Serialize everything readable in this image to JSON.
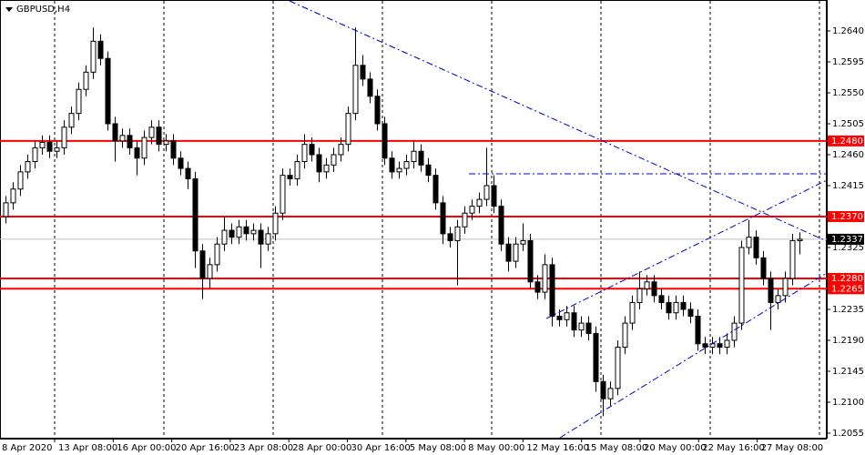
{
  "chart_data": {
    "type": "candlestick",
    "title": "GBPUSD,H4",
    "open": [
      1.237,
      1.239,
      1.241,
      1.2435,
      1.245,
      1.247,
      1.2478,
      1.2465,
      1.247,
      1.25,
      1.252,
      1.2555,
      1.258,
      1.2625,
      1.26,
      1.2505,
      1.248,
      1.2488,
      1.247,
      1.2455,
      1.2485,
      1.25,
      1.2475,
      1.248,
      1.2455,
      1.244,
      1.2425,
      1.232,
      1.228,
      1.23,
      1.233,
      1.235,
      1.234,
      1.2355,
      1.2345,
      1.235,
      1.233,
      1.2345,
      1.2375,
      1.243,
      1.2425,
      1.245,
      1.2475,
      1.246,
      1.2435,
      1.2445,
      1.246,
      1.2475,
      1.252,
      1.259,
      1.257,
      1.2545,
      1.2505,
      1.2455,
      1.2435,
      1.244,
      1.245,
      1.2465,
      1.2445,
      1.243,
      1.239,
      1.2345,
      1.2335,
      1.2355,
      1.2375,
      1.2385,
      1.2395,
      1.2415,
      1.2385,
      1.233,
      1.2305,
      1.233,
      1.2335,
      1.2275,
      1.226,
      1.23,
      1.2225,
      1.222,
      1.223,
      1.2205,
      1.2215,
      1.22,
      1.213,
      1.2105,
      1.212,
      1.218,
      1.2215,
      1.2245,
      1.2265,
      1.2275,
      1.2255,
      1.2245,
      1.223,
      1.2245,
      1.2235,
      1.2225,
      1.2185,
      1.218,
      1.2185,
      1.218,
      1.219,
      1.2215,
      1.2325,
      1.234,
      1.231,
      1.228,
      1.2245,
      1.2255,
      1.228,
      1.2335
    ],
    "high": [
      1.24,
      1.242,
      1.2445,
      1.246,
      1.248,
      1.2488,
      1.2488,
      1.248,
      1.251,
      1.253,
      1.2565,
      1.259,
      1.2645,
      1.2635,
      1.261,
      1.2515,
      1.2498,
      1.2498,
      1.248,
      1.2495,
      1.251,
      1.251,
      1.249,
      1.249,
      1.2465,
      1.245,
      1.2435,
      1.233,
      1.231,
      1.234,
      1.237,
      1.236,
      1.2365,
      1.2365,
      1.236,
      1.236,
      1.2355,
      1.2385,
      1.244,
      1.244,
      1.246,
      1.249,
      1.2485,
      1.247,
      1.2455,
      1.247,
      1.2485,
      1.253,
      1.2645,
      1.2605,
      1.258,
      1.2555,
      1.2515,
      1.2465,
      1.245,
      1.246,
      1.248,
      1.2475,
      1.2455,
      1.244,
      1.24,
      1.2355,
      1.2365,
      1.2385,
      1.2395,
      1.2405,
      1.247,
      1.243,
      1.2395,
      1.234,
      1.234,
      1.236,
      1.2345,
      1.2285,
      1.2315,
      1.231,
      1.2235,
      1.224,
      1.224,
      1.2225,
      1.2225,
      1.221,
      1.214,
      1.213,
      1.219,
      1.2225,
      1.2255,
      1.229,
      1.2285,
      1.2285,
      1.2265,
      1.2255,
      1.2255,
      1.2255,
      1.2245,
      1.2235,
      1.2195,
      1.2195,
      1.2195,
      1.22,
      1.2225,
      1.2335,
      1.2365,
      1.235,
      1.232,
      1.229,
      1.2265,
      1.229,
      1.2345,
      1.2347
    ],
    "low": [
      1.236,
      1.238,
      1.24,
      1.2425,
      1.244,
      1.246,
      1.2455,
      1.2455,
      1.246,
      1.249,
      1.251,
      1.2545,
      1.257,
      1.259,
      1.2495,
      1.245,
      1.247,
      1.246,
      1.243,
      1.2445,
      1.2475,
      1.2465,
      1.2465,
      1.2445,
      1.243,
      1.241,
      1.2295,
      1.225,
      1.2265,
      1.229,
      1.232,
      1.233,
      1.233,
      1.2335,
      1.2335,
      1.2295,
      1.232,
      1.2335,
      1.2365,
      1.2415,
      1.2415,
      1.244,
      1.245,
      1.242,
      1.2425,
      1.2435,
      1.245,
      1.2465,
      1.251,
      1.256,
      1.2535,
      1.2495,
      1.2445,
      1.2425,
      1.2425,
      1.243,
      1.244,
      1.2435,
      1.242,
      1.238,
      1.233,
      1.2325,
      1.227,
      1.2345,
      1.2365,
      1.2375,
      1.2385,
      1.2375,
      1.232,
      1.229,
      1.2295,
      1.232,
      1.2265,
      1.225,
      1.225,
      1.221,
      1.221,
      1.221,
      1.2195,
      1.2195,
      1.219,
      1.2115,
      1.208,
      1.2095,
      1.211,
      1.217,
      1.2205,
      1.2235,
      1.2255,
      1.2245,
      1.2235,
      1.222,
      1.222,
      1.2225,
      1.2215,
      1.2175,
      1.217,
      1.217,
      1.217,
      1.217,
      1.218,
      1.2205,
      1.2315,
      1.23,
      1.227,
      1.2205,
      1.2235,
      1.2245,
      1.227,
      1.2315
    ],
    "close": [
      1.239,
      1.241,
      1.2435,
      1.245,
      1.247,
      1.2478,
      1.2465,
      1.247,
      1.25,
      1.252,
      1.2555,
      1.258,
      1.2625,
      1.26,
      1.2505,
      1.248,
      1.2488,
      1.247,
      1.2455,
      1.2485,
      1.25,
      1.2475,
      1.248,
      1.2455,
      1.244,
      1.2425,
      1.232,
      1.228,
      1.23,
      1.233,
      1.235,
      1.234,
      1.2355,
      1.2345,
      1.235,
      1.233,
      1.2345,
      1.2375,
      1.243,
      1.2425,
      1.245,
      1.2475,
      1.246,
      1.2435,
      1.2445,
      1.246,
      1.2475,
      1.252,
      1.259,
      1.257,
      1.2545,
      1.2505,
      1.2455,
      1.2435,
      1.244,
      1.245,
      1.2465,
      1.2445,
      1.243,
      1.239,
      1.2345,
      1.2335,
      1.2355,
      1.2375,
      1.2385,
      1.2395,
      1.2415,
      1.2385,
      1.233,
      1.2305,
      1.233,
      1.2335,
      1.2275,
      1.226,
      1.23,
      1.2225,
      1.222,
      1.223,
      1.2205,
      1.2215,
      1.22,
      1.213,
      1.2105,
      1.212,
      1.218,
      1.2215,
      1.2245,
      1.2265,
      1.2275,
      1.2255,
      1.2245,
      1.223,
      1.2245,
      1.2235,
      1.2225,
      1.2185,
      1.218,
      1.2185,
      1.218,
      1.219,
      1.2215,
      1.2325,
      1.234,
      1.231,
      1.228,
      1.2245,
      1.2255,
      1.228,
      1.2335,
      1.2337
    ],
    "ylim": [
      1.2047,
      1.2685
    ],
    "yticks": [
      {
        "value": 1.264,
        "label": "1.2640"
      },
      1.2595,
      {
        "value": 1.255,
        "label": "1.2550"
      },
      1.2505,
      {
        "value": 1.246,
        "label": "1.2460"
      },
      1.2415,
      1.2325,
      1.2235,
      {
        "value": 1.219,
        "label": "1.2190"
      },
      1.2145,
      {
        "value": 1.21,
        "label": "1.2100"
      },
      1.2055
    ],
    "levels": [
      {
        "value": 1.248,
        "label": "1.2480"
      },
      {
        "value": 1.237,
        "label": "1.2370"
      },
      {
        "value": 1.228,
        "label": "1.2280"
      },
      1.2265
    ],
    "level_color": "#ff0000",
    "current_price": 1.2337,
    "x_labels": [
      "8 Apr 2020",
      "13 Apr 08:00",
      "16 Apr 00:00",
      "20 Apr 16:00",
      "23 Apr 08:00",
      "28 Apr 00:00",
      "30 Apr 16:00",
      "5 May 08:00",
      "8 May 00:00",
      "12 May 16:00",
      "15 May 08:00",
      "20 May 00:00",
      "22 May 16:00",
      "27 May 08:00"
    ]
  }
}
